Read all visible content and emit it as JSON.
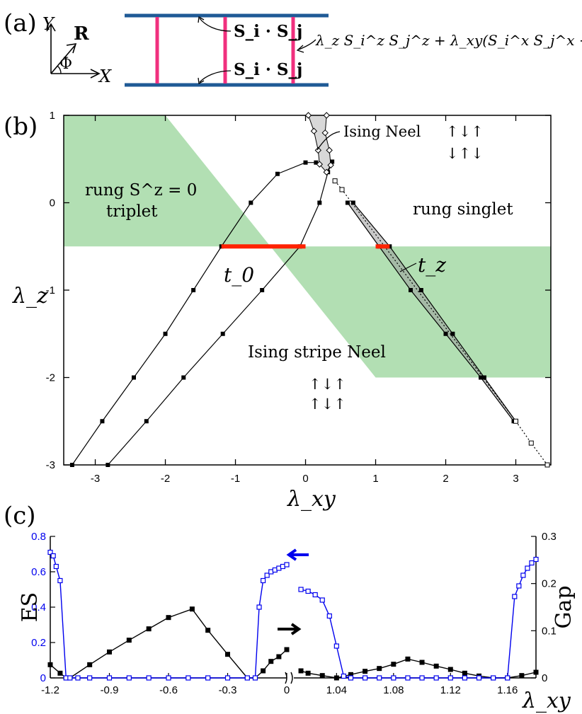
{
  "panel_labels": {
    "a": "(a)",
    "b": "(b)",
    "c": "(c)"
  },
  "panel_a": {
    "axis_y": "Y",
    "axis_x": "X",
    "vec": "R",
    "angle": "Φ",
    "rung_label_top": "S_i · S_j",
    "rung_label_bottom": "S_i · S_j",
    "rung_hamiltonian": "λ_z S_i^z S_j^z + λ_xy(S_i^x S_j^x + S_i^y S_j^y)",
    "colors": {
      "leg": "#1f5a96",
      "rung": "#f0307e"
    }
  },
  "chart_data": [
    {
      "type": "line",
      "panel": "b",
      "title": "",
      "xlabel": "λ_xy",
      "ylabel": "λ_z",
      "xlim": [
        -3.45,
        3.5
      ],
      "ylim": [
        -3,
        1
      ],
      "xticks": [
        -3,
        -2,
        -1,
        0,
        1,
        2,
        3
      ],
      "yticks": [
        1,
        0,
        -1,
        -2,
        -3
      ],
      "x_tick_labels": [
        "-3",
        "-2",
        "-1",
        "0",
        "1",
        "2",
        "3"
      ],
      "y_tick_labels": [
        "1",
        "0",
        "-1",
        "-2",
        "-3"
      ],
      "regions": [
        {
          "name": "rung Sz=0 triplet region",
          "color": "#b2dfb3",
          "polygon": [
            [
              -3.45,
              1
            ],
            [
              -2,
              1
            ],
            [
              -0.5,
              -0.5
            ],
            [
              -3.45,
              -0.5
            ]
          ]
        },
        {
          "name": "Ising stripe Neel region",
          "color": "#b2dfb3",
          "polygon": [
            [
              -0.5,
              -0.5
            ],
            [
              3.5,
              -0.5
            ],
            [
              3.5,
              -2
            ],
            [
              1,
              -2
            ]
          ]
        }
      ],
      "series": [
        {
          "name": "outer boundary",
          "marker": "square-filled",
          "x": [
            -3.33,
            -2.9,
            -2.45,
            -2.0,
            -1.6,
            -1.2,
            -0.78,
            -0.4,
            0.0,
            0.15
          ],
          "y": [
            -3,
            -2.5,
            -2,
            -1.5,
            -1,
            -0.5,
            0,
            0.33,
            0.46,
            0.46
          ]
        },
        {
          "name": "inner boundary",
          "marker": "square-filled",
          "x": [
            -2.82,
            -2.27,
            -1.74,
            -1.18,
            -0.62,
            -0.08,
            0.2,
            0.32,
            0.38
          ],
          "y": [
            -3,
            -2.5,
            -2,
            -1.5,
            -1,
            -0.5,
            0,
            0.35,
            0.47
          ]
        },
        {
          "name": "Ising Neel boundary",
          "marker": "diamond",
          "x": [
            0.04,
            0.3,
            0.12,
            0.28,
            0.18,
            0.34,
            0.2,
            0.36,
            0.3
          ],
          "y": [
            1,
            1,
            0.82,
            0.8,
            0.6,
            0.6,
            0.44,
            0.43,
            0.35
          ]
        },
        {
          "name": "t_z band left edge",
          "marker": "square-filled",
          "x": [
            0.6,
            1.05,
            1.5,
            2.0,
            2.5,
            2.97
          ],
          "y": [
            0,
            -0.5,
            -1,
            -1.5,
            -2,
            -2.5
          ]
        },
        {
          "name": "t_z band right edge",
          "marker": "square-filled",
          "x": [
            0.68,
            1.2,
            1.65,
            2.1,
            2.55,
            3.0
          ],
          "y": [
            0,
            -0.5,
            -1,
            -1.5,
            -2,
            -2.5
          ]
        },
        {
          "name": "dotted continuation",
          "marker": "square-open",
          "x": [
            0.42,
            0.52,
            3.0,
            3.22,
            3.45
          ],
          "y": [
            0.25,
            0.15,
            -2.5,
            -2.75,
            -3
          ]
        }
      ],
      "segments": [
        {
          "name": "t_0 line",
          "color": "#ff2200",
          "x": [
            -1.2,
            0.0
          ],
          "y": [
            -0.5,
            -0.5
          ]
        },
        {
          "name": "t_z line",
          "color": "#ff2200",
          "x": [
            1.0,
            1.2
          ],
          "y": [
            -0.5,
            -0.5
          ]
        }
      ],
      "annotations": {
        "ising_neel": "Ising Neel",
        "ising_neel_arrows_1": "↑↓↑",
        "ising_neel_arrows_2": "↓↑↓",
        "triplet_line1": "rung S^z = 0",
        "triplet_line2": "triplet",
        "rung_singlet": "rung singlet",
        "t0": "t_0",
        "tz": "t_z",
        "stripe": "Ising stripe Neel",
        "stripe_arrows_1": "↑↓↑",
        "stripe_arrows_2": "↑↓↑"
      }
    },
    {
      "type": "line",
      "panel": "c",
      "xlabel": "λ_xy",
      "ylabel_left": "ES",
      "ylabel_right": "Gap",
      "ylim_left": [
        0,
        0.8
      ],
      "ylim_right": [
        0,
        0.3
      ],
      "left_colors": {
        "es": "#0000ee",
        "gap": "#000000"
      },
      "left_segment": {
        "xlim": [
          -1.2,
          0.0
        ],
        "xticks": [
          -1.2,
          -0.9,
          -0.6,
          -0.3,
          0
        ],
        "x_tick_labels": [
          "-1.2",
          "-0.9",
          "-0.6",
          "-0.3",
          "0"
        ],
        "es": {
          "x": [
            -1.2,
            -1.185,
            -1.17,
            -1.15,
            -1.12,
            -1.1,
            -1.06,
            -1.0,
            -0.9,
            -0.8,
            -0.7,
            -0.6,
            -0.5,
            -0.4,
            -0.3,
            -0.2,
            -0.16,
            -0.14,
            -0.12,
            -0.1,
            -0.08,
            -0.06,
            -0.04,
            -0.02,
            0.0
          ],
          "y": [
            0.71,
            0.69,
            0.63,
            0.55,
            0.0,
            0.0,
            0.0,
            0.0,
            0.0,
            0.0,
            0.0,
            0.0,
            0.0,
            0.0,
            0.0,
            0.0,
            0.0,
            0.4,
            0.55,
            0.58,
            0.6,
            0.61,
            0.62,
            0.63,
            0.64
          ]
        },
        "gap": {
          "x": [
            -1.2,
            -1.15,
            -1.12,
            -1.1,
            -1.0,
            -0.9,
            -0.8,
            -0.7,
            -0.6,
            -0.48,
            -0.4,
            -0.3,
            -0.2,
            -0.16,
            -0.12,
            -0.08,
            -0.04,
            0.0
          ],
          "y": [
            0.028,
            0.01,
            0.0,
            0.0,
            0.028,
            0.055,
            0.08,
            0.104,
            0.128,
            0.146,
            0.101,
            0.05,
            0.0,
            0.0,
            0.015,
            0.035,
            0.045,
            0.06
          ]
        }
      },
      "right_segment": {
        "xlim": [
          1.01,
          1.18
        ],
        "xticks": [
          1.04,
          1.08,
          1.12,
          1.16
        ],
        "x_tick_labels": [
          "1.04",
          "1.08",
          "1.12",
          "1.16"
        ],
        "es": {
          "x": [
            1.015,
            1.02,
            1.025,
            1.03,
            1.035,
            1.04,
            1.045,
            1.05,
            1.06,
            1.07,
            1.08,
            1.09,
            1.1,
            1.11,
            1.12,
            1.13,
            1.14,
            1.15,
            1.16,
            1.165,
            1.168,
            1.171,
            1.174,
            1.177,
            1.18
          ],
          "y": [
            0.5,
            0.49,
            0.47,
            0.44,
            0.35,
            0.18,
            0.01,
            0.0,
            0.0,
            0.0,
            0.0,
            0.0,
            0.0,
            0.0,
            0.0,
            0.0,
            0.0,
            0.0,
            0.0,
            0.46,
            0.52,
            0.58,
            0.62,
            0.65,
            0.67
          ]
        },
        "gap": {
          "x": [
            1.015,
            1.02,
            1.03,
            1.04,
            1.05,
            1.06,
            1.07,
            1.08,
            1.09,
            1.1,
            1.11,
            1.12,
            1.13,
            1.14,
            1.15,
            1.16,
            1.17,
            1.18
          ],
          "y": [
            0.015,
            0.01,
            0.005,
            0.0,
            0.007,
            0.014,
            0.02,
            0.029,
            0.04,
            0.033,
            0.025,
            0.018,
            0.01,
            0.004,
            0.0,
            0.0,
            0.005,
            0.012
          ]
        }
      },
      "yticks_left": [
        "0",
        "0.2",
        "0.4",
        "0.6",
        "0.8"
      ],
      "yticks_right": [
        "0",
        "0.1",
        "0.2",
        "0.3"
      ],
      "arrows": {
        "left_arrow_color": "#0000ee",
        "right_arrow_color": "#000000"
      }
    }
  ]
}
